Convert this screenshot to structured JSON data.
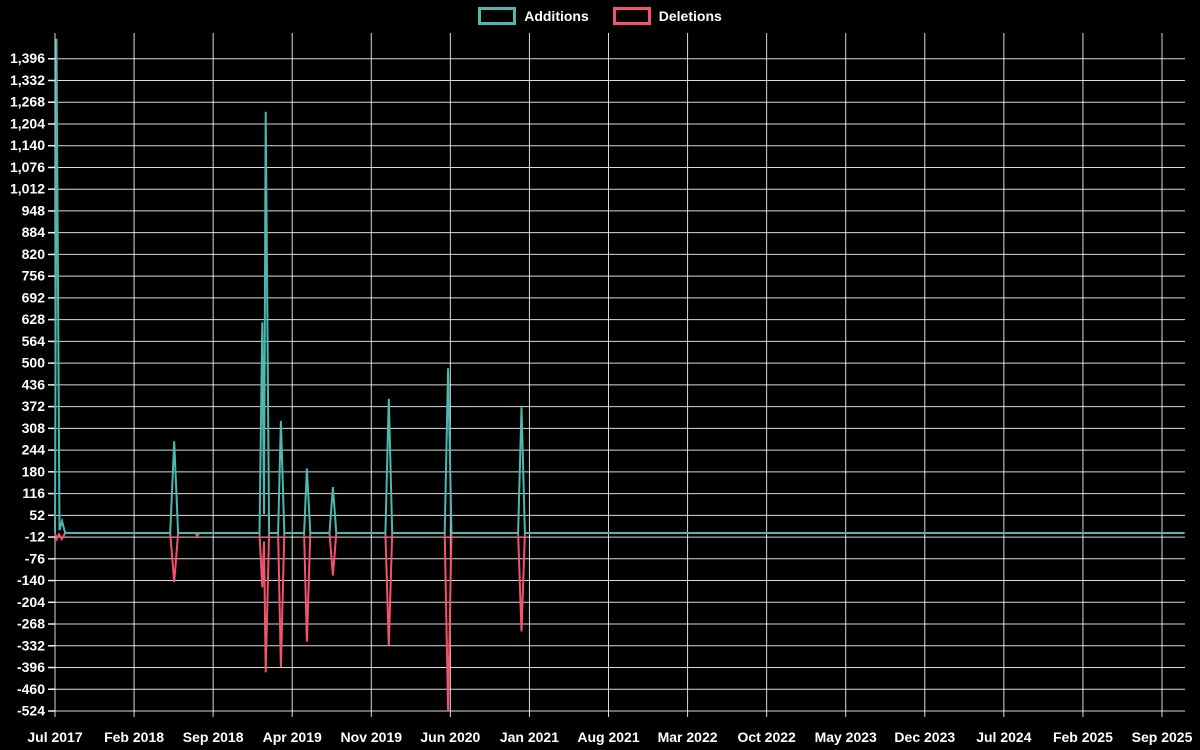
{
  "chart_data": {
    "type": "line",
    "title": "",
    "legend": {
      "position": "top-center"
    },
    "background_color": "#000000",
    "grid_color": "#ffffff",
    "text_color": "#ffffff",
    "x_axis": {
      "unit": "months_since_jul_2017",
      "min": 0,
      "max": 100,
      "tick_step_months": 7,
      "tick_labels": [
        "Jul 2017",
        "Feb 2018",
        "Sep 2018",
        "Apr 2019",
        "Nov 2019",
        "Jun 2020",
        "Jan 2021",
        "Aug 2021",
        "Mar 2022",
        "Oct 2022",
        "May 2023",
        "Dec 2023",
        "Jul 2024",
        "Feb 2025",
        "Sep 2025"
      ],
      "tick_positions": [
        0,
        7,
        14,
        21,
        28,
        35,
        42,
        49,
        56,
        63,
        70,
        77,
        84,
        91,
        98
      ]
    },
    "y_axis": {
      "min": -524,
      "max": 1460,
      "tick_step": 64,
      "tick_values": [
        1396,
        1332,
        1268,
        1204,
        1140,
        1076,
        1012,
        948,
        884,
        820,
        756,
        692,
        628,
        564,
        500,
        436,
        372,
        308,
        244,
        180,
        116,
        52,
        -12,
        -76,
        -140,
        -204,
        -268,
        -332,
        -396,
        -460,
        -524
      ],
      "tick_labels": [
        "1,396",
        "1,332",
        "1,268",
        "1,204",
        "1,140",
        "1,076",
        "1,012",
        "948",
        "884",
        "820",
        "756",
        "692",
        "628",
        "564",
        "500",
        "436",
        "372",
        "308",
        "244",
        "180",
        "116",
        "52",
        "-12",
        "-76",
        "-140",
        "-204",
        "-268",
        "-332",
        "-396",
        "-460",
        "-524"
      ]
    },
    "series": [
      {
        "name": "Deletions",
        "color": "#f4536e",
        "line_width": 2,
        "points": [
          [
            0,
            0
          ],
          [
            0.15,
            -18
          ],
          [
            0.35,
            -4
          ],
          [
            0.6,
            -18
          ],
          [
            0.9,
            0
          ],
          [
            10.2,
            0
          ],
          [
            10.55,
            -145
          ],
          [
            10.9,
            0
          ],
          [
            12.45,
            0
          ],
          [
            12.6,
            -10
          ],
          [
            12.75,
            0
          ],
          [
            18.1,
            0
          ],
          [
            18.35,
            -160
          ],
          [
            18.5,
            -25
          ],
          [
            18.65,
            -410
          ],
          [
            18.95,
            0
          ],
          [
            19.75,
            0
          ],
          [
            20.0,
            -395
          ],
          [
            20.3,
            0
          ],
          [
            22.05,
            0
          ],
          [
            22.3,
            -320
          ],
          [
            22.6,
            0
          ],
          [
            24.3,
            0
          ],
          [
            24.6,
            -125
          ],
          [
            24.9,
            0
          ],
          [
            29.25,
            0
          ],
          [
            29.55,
            -330
          ],
          [
            29.85,
            0
          ],
          [
            34.5,
            0
          ],
          [
            34.8,
            -524
          ],
          [
            35.1,
            0
          ],
          [
            41.0,
            0
          ],
          [
            41.3,
            -290
          ],
          [
            41.6,
            0
          ],
          [
            100,
            0
          ]
        ]
      },
      {
        "name": "Additions",
        "color": "#4db8b0",
        "line_width": 2,
        "points": [
          [
            0,
            0
          ],
          [
            0.13,
            1455
          ],
          [
            0.4,
            8
          ],
          [
            0.62,
            35
          ],
          [
            0.9,
            0
          ],
          [
            10.2,
            0
          ],
          [
            10.55,
            270
          ],
          [
            10.9,
            0
          ],
          [
            18.1,
            0
          ],
          [
            18.35,
            620
          ],
          [
            18.5,
            55
          ],
          [
            18.65,
            1240
          ],
          [
            18.95,
            0
          ],
          [
            19.75,
            0
          ],
          [
            20.0,
            330
          ],
          [
            20.3,
            0
          ],
          [
            22.05,
            0
          ],
          [
            22.3,
            190
          ],
          [
            22.6,
            0
          ],
          [
            24.3,
            0
          ],
          [
            24.6,
            135
          ],
          [
            24.9,
            0
          ],
          [
            29.25,
            0
          ],
          [
            29.55,
            395
          ],
          [
            29.85,
            0
          ],
          [
            34.5,
            0
          ],
          [
            34.8,
            485
          ],
          [
            35.1,
            0
          ],
          [
            41.0,
            0
          ],
          [
            41.3,
            370
          ],
          [
            41.6,
            0
          ],
          [
            100,
            0
          ]
        ]
      }
    ],
    "legend_order": [
      "Additions",
      "Deletions"
    ]
  },
  "legend": {
    "additions_label": "Additions",
    "deletions_label": "Deletions"
  }
}
